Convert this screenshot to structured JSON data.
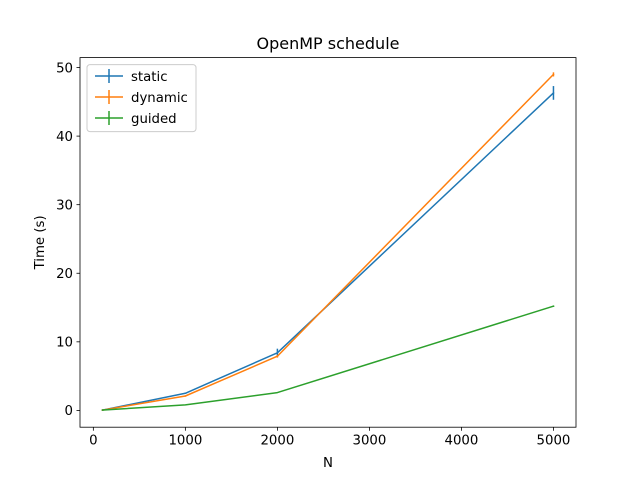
{
  "chart_data": {
    "type": "line",
    "title": "OpenMP schedule",
    "xlabel": "N",
    "ylabel": "Time (s)",
    "xlim": [
      -145,
      5245
    ],
    "ylim": [
      -2.45,
      51.45
    ],
    "xticks": [
      0,
      1000,
      2000,
      3000,
      4000,
      5000
    ],
    "yticks": [
      0,
      10,
      20,
      30,
      40,
      50
    ],
    "grid": false,
    "legend_position": "upper left",
    "error_bars": true,
    "x": [
      100,
      1000,
      2000,
      5000
    ],
    "series": [
      {
        "name": "static",
        "color": "#1f77b4",
        "values": [
          0.05,
          2.5,
          8.4,
          46.3
        ],
        "errors": [
          0.1,
          0.1,
          0.6,
          1.0
        ]
      },
      {
        "name": "dynamic",
        "color": "#ff7f0e",
        "values": [
          0.05,
          2.1,
          7.9,
          49.0
        ],
        "errors": [
          0.1,
          0.1,
          0.2,
          0.3
        ]
      },
      {
        "name": "guided",
        "color": "#2ca02c",
        "values": [
          0.05,
          0.8,
          2.6,
          15.2
        ],
        "errors": [
          0.05,
          0.05,
          0.05,
          0.1
        ]
      }
    ]
  }
}
